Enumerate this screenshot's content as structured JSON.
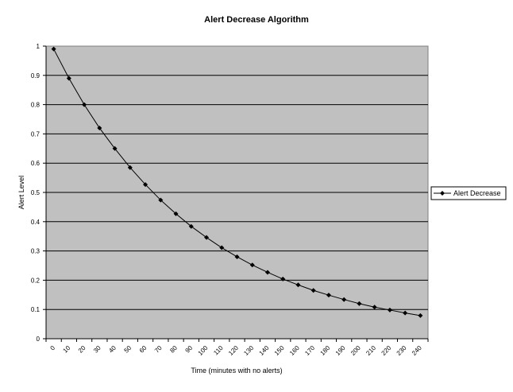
{
  "chart_data": {
    "type": "line",
    "title": "Alert Decrease Algorithm",
    "xlabel": "Time (minutes with no alerts)",
    "ylabel": "Alert Level",
    "x_ticks": [
      "0",
      "10",
      "20",
      "30",
      "40",
      "50",
      "60",
      "70",
      "80",
      "90",
      "100",
      "110",
      "120",
      "130",
      "140",
      "150",
      "160",
      "170",
      "180",
      "190",
      "200",
      "210",
      "220",
      "230",
      "240"
    ],
    "y_ticks": [
      "0",
      "0.1",
      "0.2",
      "0.3",
      "0.4",
      "0.5",
      "0.6",
      "0.7",
      "0.8",
      "0.9",
      "1"
    ],
    "ylim": [
      0,
      1
    ],
    "grid": "horizontal",
    "legend_position": "right",
    "plot_background": "#c0c0c0",
    "line_color": "#000000",
    "series": [
      {
        "name": "Alert Decrease",
        "x": [
          "0",
          "10",
          "20",
          "30",
          "40",
          "50",
          "60",
          "70",
          "80",
          "90",
          "100",
          "110",
          "120",
          "130",
          "140",
          "150",
          "160",
          "170",
          "180",
          "190",
          "200",
          "210",
          "220",
          "230",
          "240"
        ],
        "values": [
          0.99,
          0.89,
          0.8,
          0.72,
          0.65,
          0.585,
          0.527,
          0.474,
          0.427,
          0.384,
          0.346,
          0.311,
          0.28,
          0.252,
          0.227,
          0.204,
          0.184,
          0.165,
          0.149,
          0.134,
          0.12,
          0.108,
          0.098,
          0.088,
          0.079
        ]
      }
    ]
  }
}
